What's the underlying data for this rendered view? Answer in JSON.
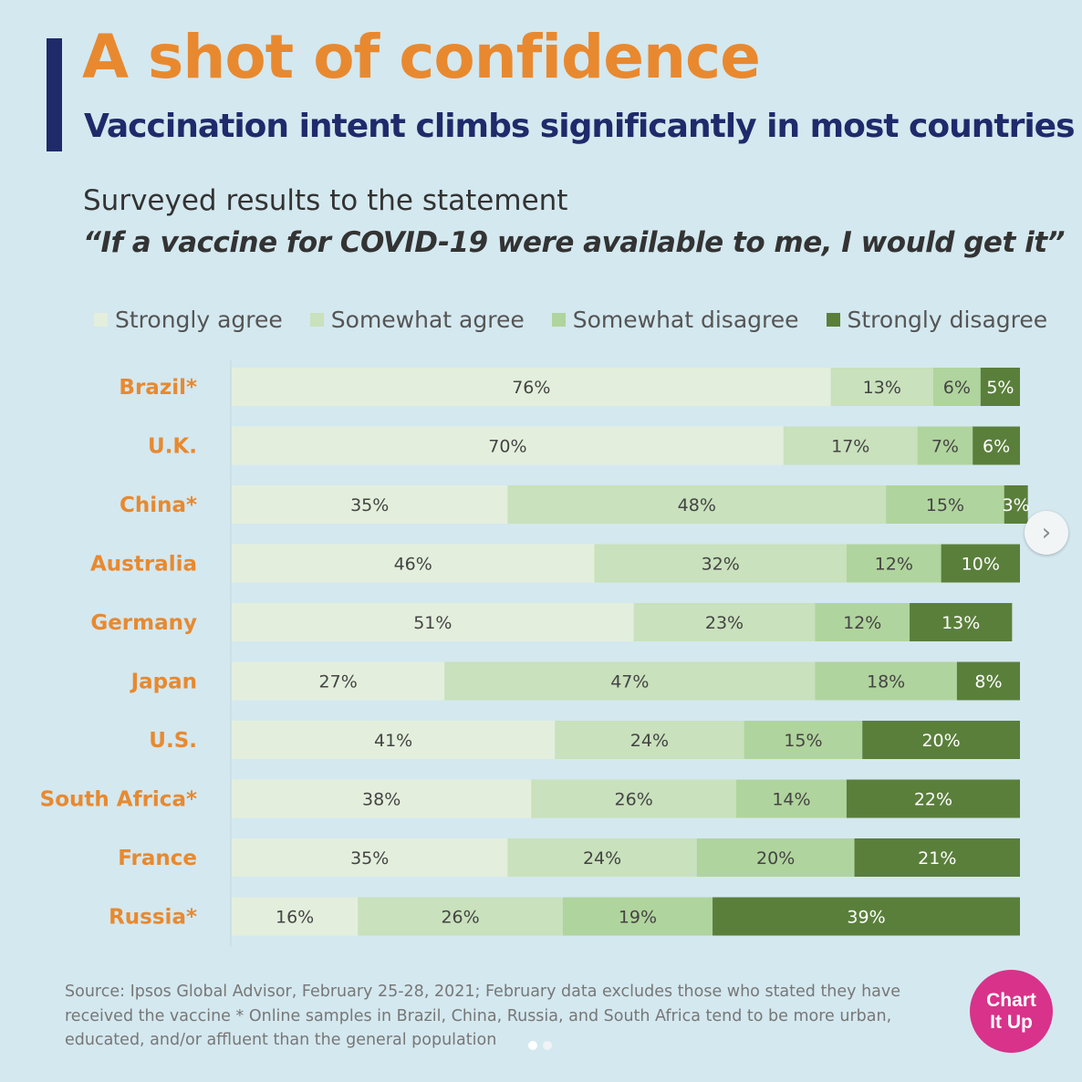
{
  "header": {
    "title": "A shot of confidence",
    "subtitle": "Vaccination intent climbs significantly in most countries",
    "survey_intro": "Surveyed results to the statement",
    "survey_statement": "“If a vaccine for COVID-19 were available to me, I would get it”"
  },
  "colors": {
    "background": "#d4e8ef",
    "title": "#e8892f",
    "subtitle": "#1f2a6b",
    "category_label": "#e8892f",
    "strongly_agree": "#e3efdc",
    "somewhat_agree": "#c9e1bc",
    "somewhat_disagree": "#b0d49d",
    "strongly_disagree": "#5a7f3b"
  },
  "chart_data": {
    "type": "bar",
    "orientation": "horizontal",
    "stacked": true,
    "categories": [
      "Brazil*",
      "U.K.",
      "China*",
      "Australia",
      "Germany",
      "Japan",
      "U.S.",
      "South Africa*",
      "France",
      "Russia*"
    ],
    "series": [
      {
        "name": "Strongly agree",
        "values": [
          76,
          70,
          35,
          46,
          51,
          27,
          41,
          38,
          35,
          16
        ]
      },
      {
        "name": "Somewhat agree",
        "values": [
          13,
          17,
          48,
          32,
          23,
          47,
          24,
          26,
          24,
          26
        ]
      },
      {
        "name": "Somewhat disagree",
        "values": [
          6,
          7,
          15,
          12,
          12,
          18,
          15,
          14,
          20,
          19
        ]
      },
      {
        "name": "Strongly disagree",
        "values": [
          5,
          6,
          3,
          10,
          13,
          8,
          20,
          22,
          21,
          39
        ]
      }
    ],
    "value_suffix": "%",
    "xlim": [
      0,
      100
    ],
    "legend_position": "top",
    "grid": false
  },
  "source_note": "Source: Ipsos Global Advisor, February 25-28, 2021; February data excludes those who stated they have received the vaccine * Online samples in Brazil, China, Russia, and South Africa tend to be more urban, educated, and/or affluent than the general population",
  "badge": {
    "line1": "Chart",
    "line2": "It Up"
  },
  "icons": {
    "next": "chevron-right-icon"
  },
  "carousel": {
    "pages": 2,
    "current": 1
  }
}
